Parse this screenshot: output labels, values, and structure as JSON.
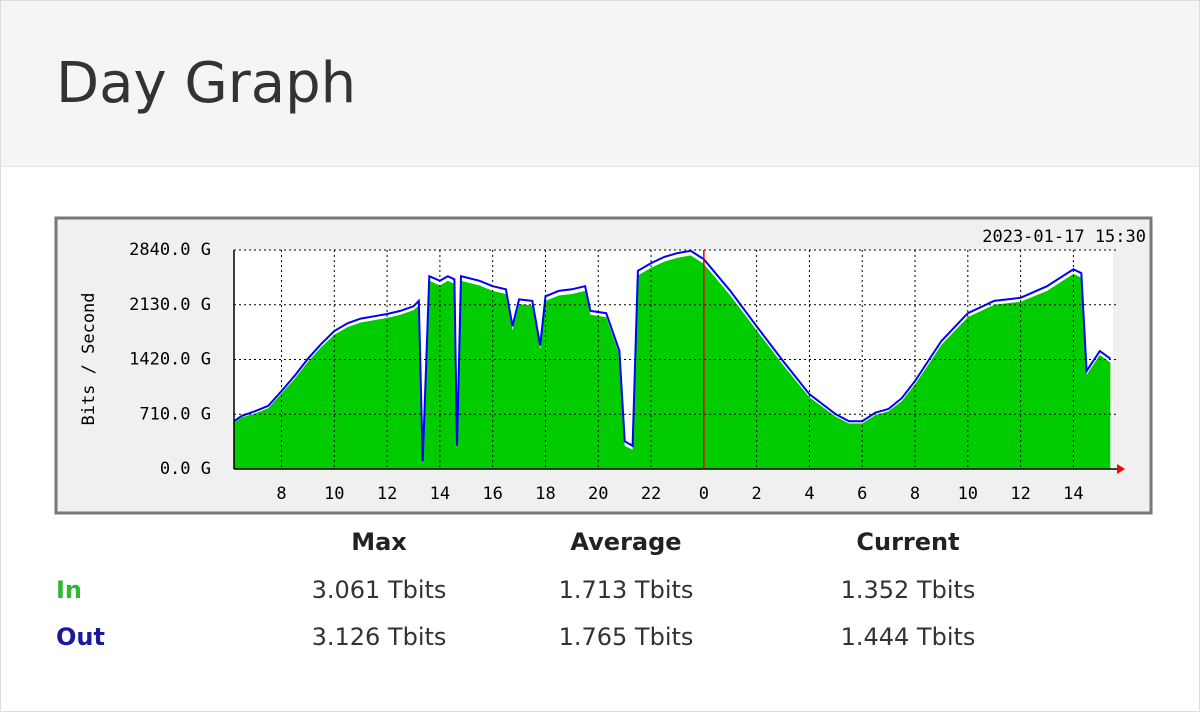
{
  "header": {
    "title": "Day Graph"
  },
  "chart_data": {
    "type": "area",
    "timestamp": "2023-01-17 15:30",
    "y_label": "Bits / Second",
    "x": [
      6.2,
      6.5,
      7.0,
      7.5,
      8.0,
      8.5,
      9.0,
      9.5,
      10.0,
      10.5,
      11.0,
      11.5,
      12.0,
      12.5,
      13.0,
      13.2,
      13.35,
      13.6,
      14.0,
      14.3,
      14.55,
      14.65,
      14.8,
      15.5,
      16.0,
      16.5,
      16.75,
      17.0,
      17.5,
      17.8,
      18.0,
      18.5,
      19.0,
      19.5,
      19.7,
      20.3,
      20.8,
      21.0,
      21.3,
      21.5,
      22.0,
      22.5,
      23.0,
      23.5,
      24.0,
      25.0,
      26.0,
      27.0,
      28.0,
      29.0,
      29.5,
      30.0,
      30.5,
      31.0,
      31.5,
      32.0,
      32.5,
      33.0,
      34.0,
      35.0,
      36.0,
      37.0,
      38.0,
      38.3,
      38.5,
      39.0,
      39.4
    ],
    "series": [
      {
        "name": "In",
        "color": "#00cc00",
        "values": [
          600,
          670,
          720,
          790,
          980,
          1170,
          1390,
          1580,
          1740,
          1840,
          1900,
          1930,
          1960,
          2000,
          2060,
          2120,
          60,
          2440,
          2380,
          2440,
          2400,
          250,
          2440,
          2380,
          2310,
          2270,
          1800,
          2140,
          2120,
          1550,
          2180,
          2250,
          2270,
          2310,
          2000,
          1970,
          1480,
          300,
          250,
          2510,
          2610,
          2690,
          2740,
          2770,
          2660,
          2250,
          1800,
          1350,
          930,
          680,
          590,
          590,
          700,
          750,
          880,
          1100,
          1350,
          1610,
          1970,
          2130,
          2170,
          2310,
          2530,
          2480,
          1220,
          1480,
          1380
        ]
      },
      {
        "name": "Out",
        "color": "#0000ff",
        "values": [
          620,
          690,
          750,
          820,
          1010,
          1210,
          1430,
          1620,
          1790,
          1890,
          1950,
          1980,
          2010,
          2050,
          2110,
          2180,
          100,
          2500,
          2440,
          2500,
          2460,
          300,
          2500,
          2440,
          2370,
          2330,
          1850,
          2200,
          2180,
          1600,
          2240,
          2310,
          2330,
          2370,
          2050,
          2020,
          1530,
          360,
          300,
          2570,
          2670,
          2750,
          2800,
          2830,
          2720,
          2310,
          1850,
          1400,
          970,
          710,
          620,
          620,
          730,
          780,
          920,
          1140,
          1400,
          1660,
          2020,
          2180,
          2220,
          2370,
          2590,
          2540,
          1270,
          1530,
          1430
        ]
      }
    ],
    "xlim": [
      6.2,
      39.5
    ],
    "xticks": [
      8,
      10,
      12,
      14,
      16,
      18,
      20,
      22,
      {
        "value": 24,
        "label": "0"
      },
      {
        "value": 26,
        "label": "2"
      },
      {
        "value": 28,
        "label": "4"
      },
      {
        "value": 30,
        "label": "6"
      },
      {
        "value": 32,
        "label": "8"
      },
      {
        "value": 34,
        "label": "10"
      },
      {
        "value": 36,
        "label": "12"
      },
      {
        "value": 38,
        "label": "14"
      }
    ],
    "ylim": [
      0,
      2840
    ],
    "yticks": [
      {
        "value": 0,
        "label": "0.0 G"
      },
      {
        "value": 710,
        "label": "710.0 G"
      },
      {
        "value": 1420,
        "label": "1420.0 G"
      },
      {
        "value": 2130,
        "label": "2130.0 G"
      },
      {
        "value": 2840,
        "label": "2840.0 G"
      }
    ],
    "grid": true
  },
  "stats": {
    "columns": [
      "Max",
      "Average",
      "Current"
    ],
    "rows": [
      {
        "label": "In",
        "values": [
          "3.061 Tbits",
          "1.713 Tbits",
          "1.352 Tbits"
        ]
      },
      {
        "label": "Out",
        "values": [
          "3.126 Tbits",
          "1.765 Tbits",
          "1.444 Tbits"
        ]
      }
    ]
  }
}
